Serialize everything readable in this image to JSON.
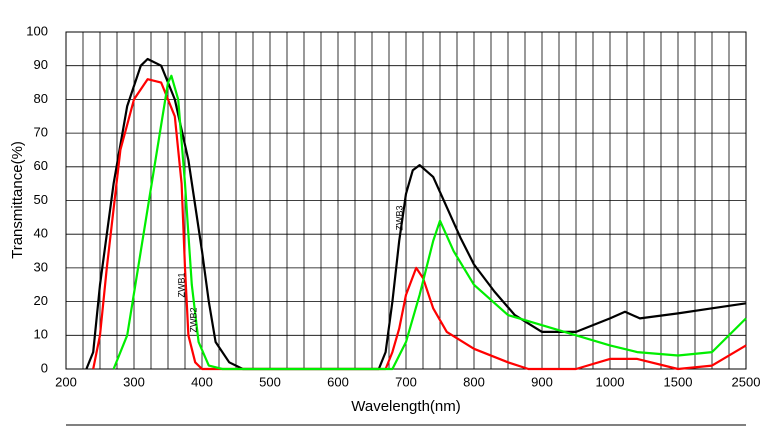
{
  "chart_data": {
    "type": "line",
    "x_label": "Wavelength(nm)",
    "y_label": "Transmittance(%)",
    "xlim": [
      200,
      2500
    ],
    "ylim": [
      0,
      100
    ],
    "xticks": [
      200,
      300,
      400,
      500,
      600,
      700,
      800,
      900,
      1000,
      1500,
      2500
    ],
    "x_scale": "piecewise",
    "yticks": [
      0,
      10,
      20,
      30,
      40,
      50,
      60,
      70,
      80,
      90,
      100
    ],
    "grid": true,
    "series": [
      {
        "name": "ZWB3",
        "color": "#000000",
        "x": [
          230,
          240,
          250,
          270,
          290,
          310,
          320,
          340,
          360,
          380,
          400,
          410,
          420,
          440,
          460,
          650,
          660,
          670,
          680,
          690,
          700,
          710,
          720,
          740,
          760,
          780,
          800,
          830,
          860,
          900,
          950,
          1000,
          1110,
          1220,
          1500,
          2000,
          2500
        ],
        "values": [
          0,
          5,
          25,
          55,
          78,
          90,
          92,
          90,
          80,
          62,
          35,
          20,
          8,
          2,
          0,
          0,
          0,
          5,
          20,
          38,
          52,
          59,
          60.5,
          57,
          48,
          39,
          31,
          23,
          16,
          11,
          11,
          15,
          17,
          15,
          16.5,
          18,
          19.5
        ]
      },
      {
        "name": "ZWB1",
        "color": "#ff0000",
        "x": [
          240,
          250,
          260,
          280,
          300,
          320,
          340,
          360,
          370,
          375,
          380,
          390,
          400,
          670,
          680,
          690,
          700,
          715,
          725,
          740,
          760,
          800,
          850,
          880,
          950,
          1000,
          1200,
          1500,
          2000,
          2500
        ],
        "values": [
          0,
          10,
          30,
          65,
          80,
          86,
          85,
          75,
          55,
          30,
          10,
          2,
          0,
          0,
          5,
          12,
          22,
          30,
          27,
          18,
          11,
          6,
          2,
          0,
          0,
          3,
          3,
          0,
          1,
          7
        ]
      },
      {
        "name": "ZWB2",
        "color": "#00ee00",
        "x": [
          270,
          290,
          310,
          330,
          350,
          355,
          365,
          375,
          385,
          395,
          410,
          430,
          680,
          700,
          720,
          740,
          750,
          770,
          800,
          850,
          900,
          950,
          1000,
          1200,
          1500,
          2000,
          2500
        ],
        "values": [
          0,
          10,
          35,
          60,
          85,
          87,
          80,
          55,
          25,
          8,
          1,
          0,
          0,
          8,
          22,
          38,
          44,
          35,
          25,
          16,
          13,
          10,
          7,
          5,
          4,
          5,
          15
        ]
      }
    ]
  }
}
